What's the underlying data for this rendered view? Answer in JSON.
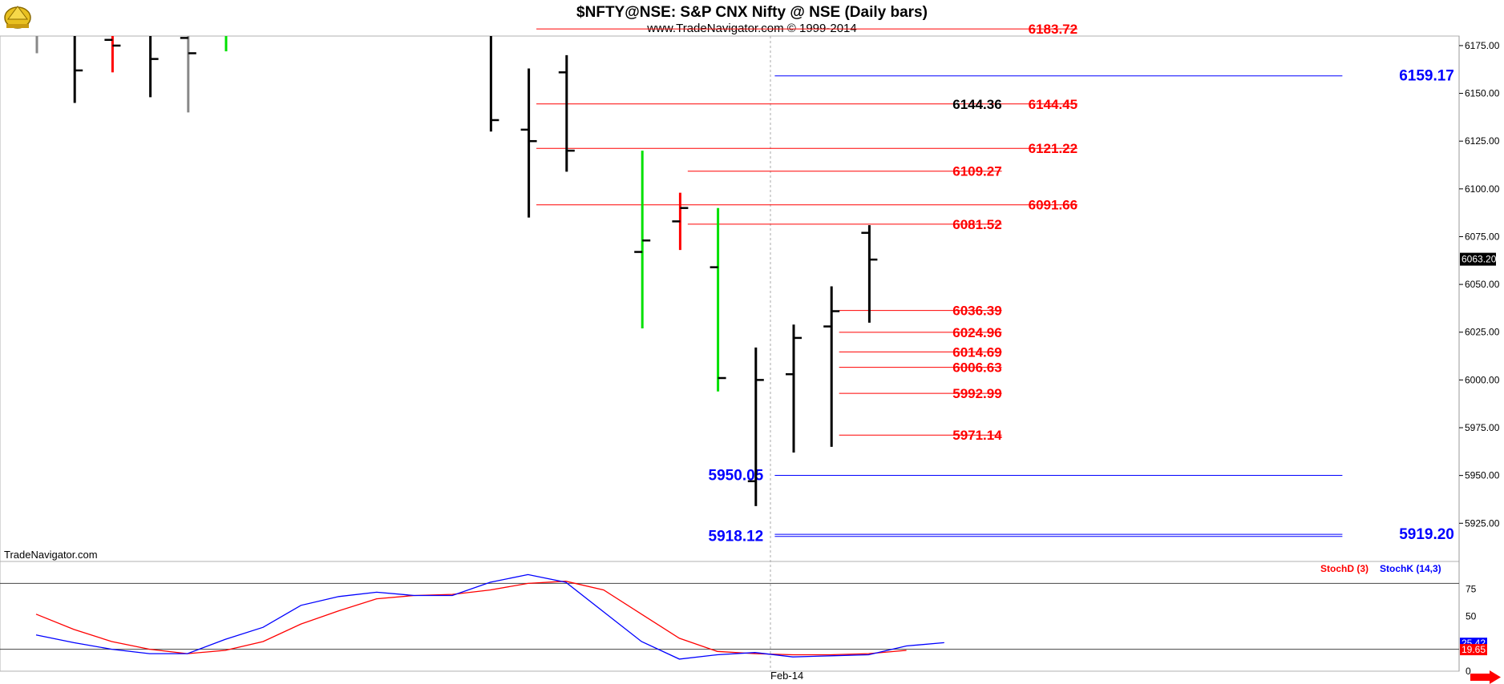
{
  "header": {
    "title": "$NFTY@NSE:  S&P CNX Nifty @ NSE  (Daily bars)",
    "subtitle": "www.TradeNavigator.com © 1999-2014"
  },
  "watermark": "TradeNavigator.com",
  "chart_data": [
    {
      "type": "ohlc",
      "name": "price",
      "ylim": [
        5905,
        6180
      ],
      "y_ticks": [
        5925,
        5950,
        5975,
        6000,
        6025,
        6050,
        6075,
        6100,
        6125,
        6150,
        6175
      ],
      "y_tick_labels": [
        "5925.00",
        "5950.00",
        "5975.00",
        "6000.00",
        "6025.00",
        "6050.00",
        "6075.00",
        "6100.00",
        "6125.00",
        "6150.00",
        "6175.00"
      ],
      "x_label": "Feb-14",
      "last_price": "6063.20",
      "colors": {
        "up": "#00e000",
        "down": "#ff0000",
        "neutral": "#000000",
        "old": "#888888"
      },
      "bars": [
        {
          "open": 6193,
          "high": 6200,
          "low": 6171,
          "close": 6193,
          "color": "old"
        },
        {
          "open": 6215,
          "high": 6220,
          "low": 6145,
          "close": 6162,
          "color": "neutral"
        },
        {
          "open": 6178,
          "high": 6190,
          "low": 6161,
          "close": 6175,
          "color": "down"
        },
        {
          "open": 6181,
          "high": 6188,
          "low": 6148,
          "close": 6168,
          "color": "neutral"
        },
        {
          "open": 6179,
          "high": 6200,
          "low": 6140,
          "close": 6171,
          "color": "old"
        },
        {
          "open": 6190,
          "high": 6196,
          "low": 6172,
          "close": 6193,
          "color": "up"
        },
        {
          "open": 6187,
          "high": 6196,
          "low": 6130,
          "close": 6136,
          "color": "neutral"
        },
        {
          "open": 6131,
          "high": 6163,
          "low": 6085,
          "close": 6125,
          "color": "neutral"
        },
        {
          "open": 6161,
          "high": 6170,
          "low": 6109,
          "close": 6120,
          "color": "neutral"
        },
        {
          "open": 6067,
          "high": 6120,
          "low": 6027,
          "close": 6073,
          "color": "up"
        },
        {
          "open": 6083,
          "high": 6098,
          "low": 6068,
          "close": 6090,
          "color": "down"
        },
        {
          "open": 6059,
          "high": 6090,
          "low": 5994,
          "close": 6001,
          "color": "up"
        },
        {
          "open": 5947,
          "high": 6017,
          "low": 5934,
          "close": 6000,
          "color": "neutral"
        },
        {
          "open": 6003,
          "high": 6029,
          "low": 5962,
          "close": 6022,
          "color": "neutral"
        },
        {
          "open": 6028,
          "high": 6049,
          "low": 5965,
          "close": 6036,
          "color": "neutral"
        },
        {
          "open": 6077,
          "high": 6081,
          "low": 6030,
          "close": 6063,
          "color": "neutral"
        }
      ],
      "levels": [
        {
          "value": 6183.72,
          "label": "6183.72",
          "color": "red",
          "from_bar": 13.2,
          "to_bar": 27.5,
          "label_bar": 26.2
        },
        {
          "value": 6159.17,
          "label": "6159.17",
          "color": "blue",
          "from_bar": 19.5,
          "to_bar": 34.5,
          "label_bar": 36.0,
          "label_right": true
        },
        {
          "value": 6144.45,
          "label": "6144.45",
          "color": "red",
          "from_bar": 13.2,
          "to_bar": 27.5,
          "label_bar": 26.2
        },
        {
          "value": 6121.22,
          "label": "6121.22",
          "color": "red",
          "from_bar": 13.2,
          "to_bar": 27.5,
          "label_bar": 26.2
        },
        {
          "value": 6109.27,
          "label": "6109.27",
          "color": "red",
          "from_bar": 17.2,
          "to_bar": 25.5,
          "label_bar": 24.2
        },
        {
          "value": 6091.66,
          "label": "6091.66",
          "color": "red",
          "from_bar": 13.2,
          "to_bar": 27.5,
          "label_bar": 26.2
        },
        {
          "value": 6081.52,
          "label": "6081.52",
          "color": "red",
          "from_bar": 17.2,
          "to_bar": 25.5,
          "label_bar": 24.2
        },
        {
          "value": 6036.39,
          "label": "6036.39",
          "color": "red",
          "from_bar": 21.2,
          "to_bar": 25.5,
          "label_bar": 24.2
        },
        {
          "value": 6024.96,
          "label": "6024.96",
          "color": "red",
          "from_bar": 21.2,
          "to_bar": 25.5,
          "label_bar": 24.2
        },
        {
          "value": 6014.69,
          "label": "6014.69",
          "color": "red",
          "from_bar": 21.2,
          "to_bar": 25.5,
          "label_bar": 24.2
        },
        {
          "value": 6006.63,
          "label": "6006.63",
          "color": "red",
          "from_bar": 21.2,
          "to_bar": 25.5,
          "label_bar": 24.2
        },
        {
          "value": 5992.99,
          "label": "5992.99",
          "color": "red",
          "from_bar": 21.2,
          "to_bar": 25.5,
          "label_bar": 24.2
        },
        {
          "value": 5971.14,
          "label": "5971.14",
          "color": "red",
          "from_bar": 21.2,
          "to_bar": 25.5,
          "label_bar": 24.2
        },
        {
          "value": 5950.05,
          "label": "5950.05",
          "color": "blue",
          "from_bar": 19.5,
          "to_bar": 34.5,
          "label_bar": 19.2,
          "label_left": true
        },
        {
          "value": 5919.2,
          "label": "5919.20",
          "color": "blue",
          "from_bar": 19.5,
          "to_bar": 34.5,
          "label_bar": 36.0,
          "label_right": true
        },
        {
          "value": 5918.12,
          "label": "5918.12",
          "color": "blue",
          "from_bar": 19.5,
          "to_bar": 34.5,
          "label_bar": 19.2,
          "label_left": true
        }
      ],
      "black_annotation": {
        "value": 6144.36,
        "label": "6144.36"
      }
    },
    {
      "type": "line",
      "name": "stochastic",
      "ylim": [
        0,
        100
      ],
      "y_ticks": [
        0,
        50,
        75
      ],
      "y_tick_labels": [
        "0",
        "50",
        "75"
      ],
      "ref_lines": [
        80,
        20
      ],
      "legend": [
        {
          "label": "StochD (3)",
          "color": "#ff0000"
        },
        {
          "label": "StochK (14,3)",
          "color": "#0000ff"
        }
      ],
      "value_badges": [
        {
          "label": "25.42",
          "color": "#0000ff",
          "value": 25.42
        },
        {
          "label": "19.65",
          "color": "#ff0000",
          "value": 19.65
        }
      ],
      "series": [
        {
          "name": "StochD (3)",
          "color": "#ff0000",
          "values": [
            52,
            38,
            27,
            20,
            16,
            19,
            27,
            43,
            55,
            66,
            69,
            70,
            74,
            80,
            82,
            74,
            52,
            30,
            18,
            16,
            15,
            15,
            16,
            19
          ]
        },
        {
          "name": "StochK (14,3)",
          "color": "#0000ff",
          "values": [
            33,
            26,
            20,
            16,
            16,
            29,
            40,
            60,
            68,
            72,
            69,
            69,
            81,
            88,
            81,
            54,
            27,
            11,
            15,
            17,
            13,
            14,
            15,
            23,
            26
          ]
        }
      ]
    }
  ]
}
